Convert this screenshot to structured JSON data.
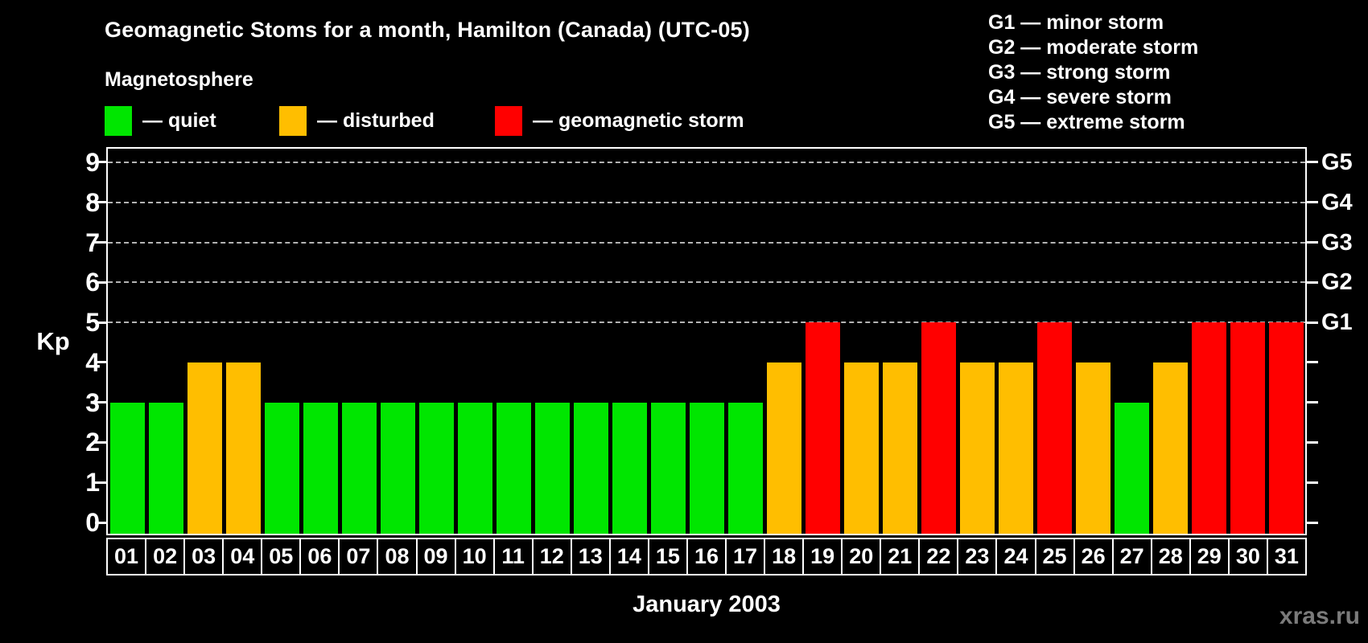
{
  "header": {
    "title": "Geomagnetic Stoms for a month, Hamilton (Canada) (UTC-05)",
    "subtitle": "Magnetosphere"
  },
  "magnetosphere_legend": [
    {
      "label": "— quiet",
      "color": "#00e600"
    },
    {
      "label": "— disturbed",
      "color": "#ffbe00"
    },
    {
      "label": "— geomagnetic storm",
      "color": "#ff0000"
    }
  ],
  "storm_scale_legend": [
    "G1 — minor storm",
    "G2 — moderate storm",
    "G3 — strong storm",
    "G4 — severe storm",
    "G5 — extreme storm"
  ],
  "watermark": "xras.ru",
  "chart_data": {
    "type": "bar",
    "title": "Geomagnetic Stoms for a month, Hamilton (Canada) (UTC-05)",
    "xlabel": "January 2003",
    "ylabel": "Kp",
    "ylim": [
      0,
      9
    ],
    "categories": [
      "01",
      "02",
      "03",
      "04",
      "05",
      "06",
      "07",
      "08",
      "09",
      "10",
      "11",
      "12",
      "13",
      "14",
      "15",
      "16",
      "17",
      "18",
      "19",
      "20",
      "21",
      "22",
      "23",
      "24",
      "25",
      "26",
      "27",
      "28",
      "29",
      "30",
      "31"
    ],
    "values": [
      3,
      3,
      4,
      4,
      3,
      3,
      3,
      3,
      3,
      3,
      3,
      3,
      3,
      3,
      3,
      3,
      3,
      4,
      5,
      4,
      4,
      5,
      4,
      4,
      5,
      4,
      3,
      4,
      5,
      5,
      5
    ],
    "y_ticks": [
      0,
      1,
      2,
      3,
      4,
      5,
      6,
      7,
      8,
      9
    ],
    "right_axis_ticks": [
      {
        "value": 5,
        "label": "G1"
      },
      {
        "value": 6,
        "label": "G2"
      },
      {
        "value": 7,
        "label": "G3"
      },
      {
        "value": 8,
        "label": "G4"
      },
      {
        "value": 9,
        "label": "G5"
      }
    ],
    "grid": "horizontal dashed lines at Kp 5–9",
    "legend_position": "top",
    "color_rules": {
      "quiet_max_kp": 3,
      "disturbed_kp": 4,
      "storm_min_kp": 5
    },
    "colors": {
      "quiet": "#00e600",
      "disturbed": "#ffbe00",
      "storm": "#ff0000"
    }
  }
}
